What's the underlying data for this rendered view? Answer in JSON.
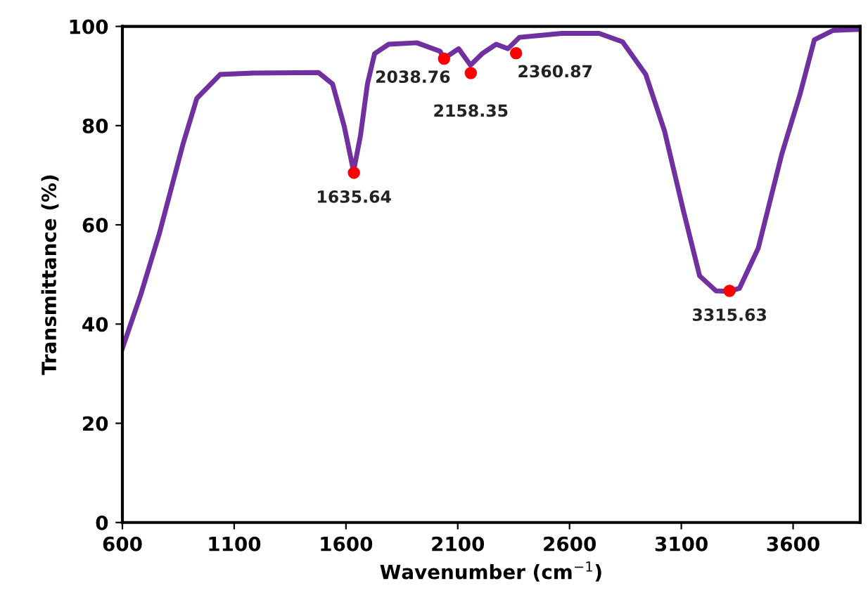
{
  "chart_data": {
    "type": "line",
    "xlabel": "Wavenumber (cm$^{−1}$)",
    "ylabel": "Transmittance (%)",
    "xlim": [
      600,
      3900
    ],
    "xticks": [
      600,
      1100,
      1600,
      2100,
      2600,
      3100,
      3600
    ],
    "ylim": [
      0,
      100
    ],
    "yticks": [
      0,
      20,
      40,
      60,
      80,
      100
    ],
    "grid": false,
    "legend": false,
    "series": [
      {
        "color": "#7030a0",
        "marker": "none",
        "line_style": "solid",
        "x": [
          600,
          682,
          765,
          870,
          933,
          1037,
          1183,
          1477,
          1540,
          1592,
          1634,
          1665,
          1696,
          1728,
          1791,
          1917,
          2021,
          2038,
          2104,
          2157,
          2209,
          2272,
          2324,
          2376,
          2565,
          2732,
          2837,
          2941,
          3025,
          3109,
          3182,
          3255,
          3315,
          3360,
          3444,
          3549,
          3632,
          3695,
          3779,
          3895
        ],
        "values": [
          35.1,
          45.9,
          58.2,
          76.1,
          85.5,
          90.3,
          90.6,
          90.7,
          88.4,
          79.9,
          70.8,
          78.0,
          88.4,
          94.5,
          96.4,
          96.7,
          95.0,
          93.5,
          95.5,
          92.2,
          94.5,
          96.4,
          95.5,
          97.8,
          98.6,
          98.6,
          96.9,
          90.3,
          78.9,
          62.9,
          49.7,
          46.7,
          46.6,
          47.2,
          55.3,
          74.2,
          86.5,
          97.3,
          99.2,
          99.4
        ]
      },
      {
        "type": "scatter",
        "color": "#ff0000",
        "marker": "circle",
        "x": [
          1635.64,
          2038.76,
          2158.35,
          2360.87,
          3315.63
        ],
        "values": [
          70.5,
          93.5,
          90.6,
          94.6,
          46.7
        ]
      }
    ],
    "annotations": [
      {
        "text": "1635.64",
        "x": 1635.64,
        "y": 70.5
      },
      {
        "text": "2038.76",
        "x": 2038.76,
        "y": 93.5
      },
      {
        "text": "2158.35",
        "x": 2158.35,
        "y": 90.6
      },
      {
        "text": "2360.87",
        "x": 2360.87,
        "y": 94.6
      },
      {
        "text": "3315.63",
        "x": 3315.63,
        "y": 46.7
      }
    ]
  }
}
